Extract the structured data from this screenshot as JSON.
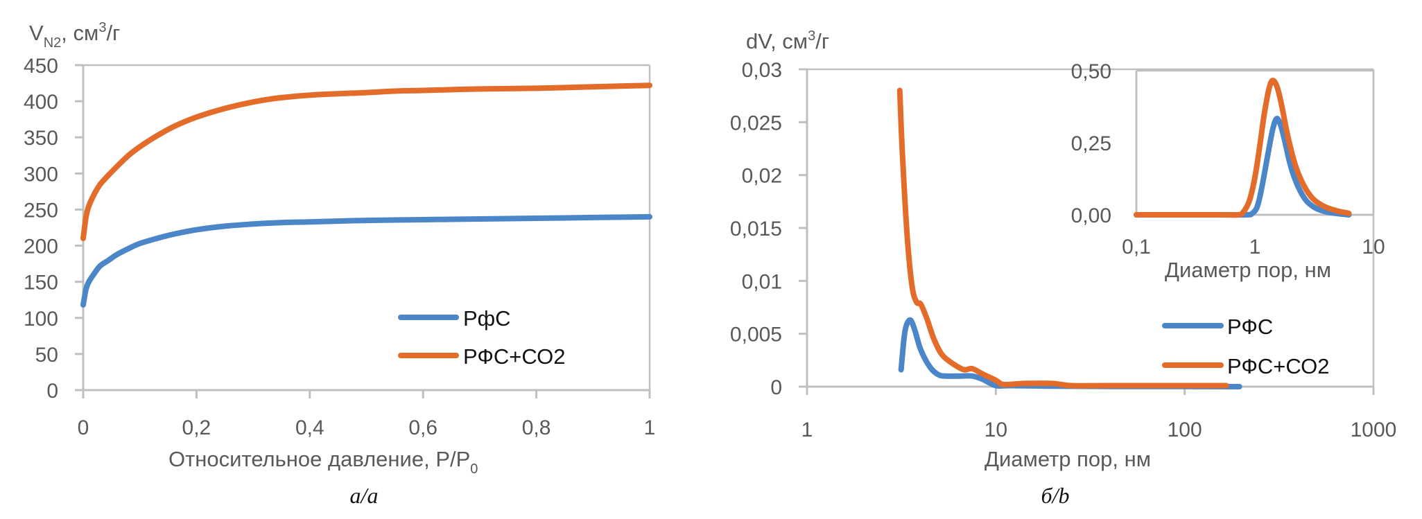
{
  "chart_data": [
    {
      "id": "a",
      "type": "line",
      "title": "",
      "ylabel_main": "V",
      "ylabel_sub": "N2",
      "ylabel_rest": ", см",
      "ylabel_sup": "3",
      "ylabel_end": "/г",
      "xlabel_main": "Относительное давление, P/P",
      "xlabel_sub": "0",
      "caption": "а/a",
      "xlim": [
        0,
        1
      ],
      "ylim": [
        0,
        450
      ],
      "xscale": "linear",
      "xticks": [
        0,
        0.2,
        0.4,
        0.6,
        0.8,
        1
      ],
      "xtick_labels": [
        "0",
        "0,2",
        "0,4",
        "0,6",
        "0,8",
        "1"
      ],
      "yticks": [
        0,
        50,
        100,
        150,
        200,
        250,
        300,
        350,
        400,
        450
      ],
      "ytick_labels": [
        "0",
        "50",
        "100",
        "150",
        "200",
        "250",
        "300",
        "350",
        "400",
        "450"
      ],
      "legend_position": "bottom-right",
      "series": [
        {
          "name": "РфС",
          "color": "#4a86c8",
          "x": [
            0.0,
            0.005,
            0.01,
            0.02,
            0.03,
            0.045,
            0.06,
            0.08,
            0.1,
            0.13,
            0.16,
            0.2,
            0.25,
            0.3,
            0.35,
            0.4,
            0.5,
            0.6,
            0.7,
            0.8,
            0.9,
            1.0
          ],
          "y": [
            118,
            140,
            150,
            162,
            172,
            180,
            188,
            196,
            203,
            210,
            216,
            222,
            227,
            230,
            232,
            233,
            235,
            236,
            237,
            238,
            239,
            240
          ]
        },
        {
          "name": "РФС+СО2",
          "color": "#e46c2a",
          "x": [
            0.0,
            0.005,
            0.01,
            0.02,
            0.03,
            0.045,
            0.06,
            0.08,
            0.1,
            0.13,
            0.16,
            0.2,
            0.25,
            0.3,
            0.35,
            0.41,
            0.5,
            0.55,
            0.6,
            0.7,
            0.8,
            0.9,
            1.0
          ],
          "y": [
            210,
            240,
            255,
            272,
            285,
            298,
            310,
            325,
            337,
            352,
            365,
            378,
            390,
            399,
            405,
            409,
            412,
            414,
            415,
            417,
            418,
            420,
            422
          ]
        }
      ]
    },
    {
      "id": "b",
      "type": "line",
      "title": "",
      "ylabel_main": "dV, см",
      "ylabel_sup": "3",
      "ylabel_end": "/г",
      "xlabel": "Диаметр пор, нм",
      "caption": "б/b",
      "xlim": [
        1,
        1000
      ],
      "ylim": [
        0,
        0.03
      ],
      "xscale": "log",
      "xticks": [
        1,
        10,
        100,
        1000
      ],
      "xtick_labels": [
        "1",
        "10",
        "100",
        "1000"
      ],
      "yticks": [
        0,
        0.005,
        0.01,
        0.015,
        0.02,
        0.025,
        0.03
      ],
      "ytick_labels": [
        "0",
        "0,005",
        "0,01",
        "0,015",
        "0,02",
        "0,025",
        "0,03"
      ],
      "legend_position": "bottom-right",
      "series": [
        {
          "name": "РФС",
          "color": "#4a86c8",
          "x": [
            3.15,
            3.3,
            3.5,
            3.7,
            4.0,
            4.5,
            5.0,
            5.5,
            6.5,
            7.5,
            8.5,
            10,
            12,
            20,
            40,
            100,
            195
          ],
          "y": [
            0.0016,
            0.0052,
            0.0063,
            0.0055,
            0.0035,
            0.0018,
            0.0011,
            0.001,
            0.001,
            0.001,
            0.0007,
            0.0001,
            0.0001,
            5e-05,
            2e-05,
            1e-05,
            0.0
          ]
        },
        {
          "name": "РФС+СО2",
          "color": "#e46c2a",
          "x": [
            3.1,
            3.2,
            3.4,
            3.6,
            3.8,
            4.0,
            4.3,
            4.7,
            5.2,
            6.0,
            6.8,
            7.5,
            8.5,
            10,
            11,
            14,
            20,
            25,
            40,
            100,
            166
          ],
          "y": [
            0.028,
            0.022,
            0.014,
            0.0095,
            0.008,
            0.0078,
            0.0065,
            0.0045,
            0.003,
            0.0021,
            0.0016,
            0.0017,
            0.0012,
            0.0006,
            0.0002,
            0.0003,
            0.0003,
            0.0001,
            0.0001,
            0.0001,
            0.0001
          ]
        }
      ]
    },
    {
      "id": "b-inset",
      "type": "line",
      "title": "",
      "xlabel": "Диаметр пор, нм",
      "xlim": [
        0.1,
        10
      ],
      "ylim": [
        0,
        0.5
      ],
      "xscale": "log",
      "xticks": [
        0.1,
        1,
        10
      ],
      "xtick_labels": [
        "0,1",
        "1",
        "10"
      ],
      "yticks": [
        0,
        0.25,
        0.5
      ],
      "ytick_labels": [
        "0,00",
        "0,25",
        "0,50"
      ],
      "series": [
        {
          "name": "РФС",
          "color": "#4a86c8",
          "x": [
            0.1,
            0.5,
            0.85,
            0.95,
            1.05,
            1.15,
            1.3,
            1.42,
            1.53,
            1.65,
            1.8,
            2.0,
            2.3,
            2.7,
            3.2,
            4.0,
            5.0,
            6.2
          ],
          "y": [
            0,
            0,
            0,
            0.005,
            0.03,
            0.1,
            0.22,
            0.3,
            0.334,
            0.31,
            0.25,
            0.17,
            0.1,
            0.05,
            0.025,
            0.01,
            0.004,
            0.0
          ]
        },
        {
          "name": "РФС+СО2",
          "color": "#e46c2a",
          "x": [
            0.1,
            0.5,
            0.72,
            0.8,
            0.9,
            1.0,
            1.1,
            1.2,
            1.32,
            1.42,
            1.55,
            1.7,
            1.9,
            2.2,
            2.6,
            3.1,
            3.8,
            4.8,
            6.2
          ],
          "y": [
            0,
            0,
            0,
            0.01,
            0.05,
            0.13,
            0.24,
            0.35,
            0.44,
            0.466,
            0.44,
            0.37,
            0.27,
            0.17,
            0.1,
            0.055,
            0.03,
            0.015,
            0.005
          ]
        }
      ]
    }
  ]
}
